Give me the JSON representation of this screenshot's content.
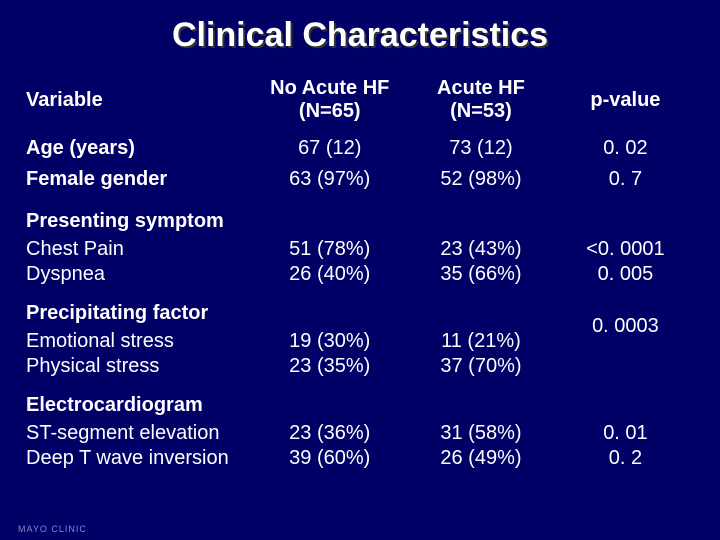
{
  "title": "Clinical Characteristics",
  "columns": {
    "variable": "Variable",
    "no_acute": "No Acute HF\n(N=65)",
    "acute": "Acute HF\n(N=53)",
    "pvalue": "p-value"
  },
  "rows": {
    "age": {
      "label": "Age (years)",
      "no": "67 (12)",
      "yes": "73 (12)",
      "p": "0. 02"
    },
    "female": {
      "label": "Female gender",
      "no": "63 (97%)",
      "yes": "52 (98%)",
      "p": "0. 7"
    },
    "sym_hdr": {
      "label": "Presenting symptom"
    },
    "chest": {
      "label": "Chest Pain",
      "no": "51 (78%)",
      "yes": "23 (43%)",
      "p": "<0. 0001"
    },
    "dyspnea": {
      "label": "Dyspnea",
      "no": "26 (40%)",
      "yes": "35 (66%)",
      "p": "0. 005"
    },
    "prec_hdr": {
      "label": "Precipitating factor",
      "p": "0. 0003"
    },
    "emo": {
      "label": "Emotional stress",
      "no": "19 (30%)",
      "yes": "11 (21%)"
    },
    "phys": {
      "label": "Physical stress",
      "no": "23 (35%)",
      "yes": "37 (70%)"
    },
    "ecg_hdr": {
      "label": "Electrocardiogram"
    },
    "st": {
      "label": "ST-segment elevation",
      "no": "23 (36%)",
      "yes": "31 (58%)",
      "p": "0. 01"
    },
    "twave": {
      "label": "Deep T wave inversion",
      "no": "39 (60%)",
      "yes": "26 (49%)",
      "p": "0. 2"
    }
  },
  "footer": "MAYO CLINIC",
  "style": {
    "background": "#000066",
    "text_color": "#ffffff",
    "title_shadow": "#333333",
    "title_fontsize": 34,
    "header_fontsize": 20,
    "cell_fontsize": 20
  }
}
